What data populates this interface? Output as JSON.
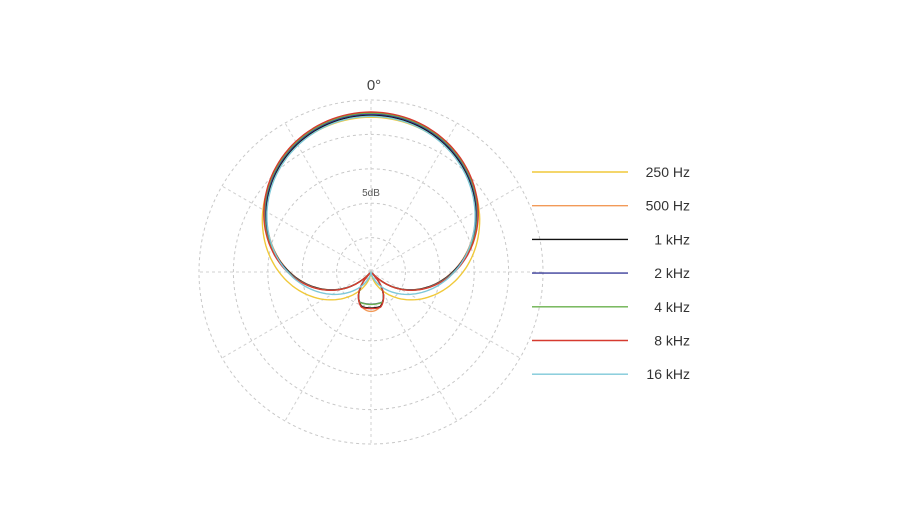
{
  "chart_data": {
    "type": "polar",
    "angle_label": "0°",
    "ring_label": "5dB",
    "grid": true,
    "legend_position": "right",
    "series": [
      {
        "name": "250 Hz",
        "color": "#f0c93a",
        "pattern": "cardioid",
        "rear_lobe": 0.22
      },
      {
        "name": "500 Hz",
        "color": "#f29a58",
        "pattern": "supercardioid",
        "rear_lobe": 0.16
      },
      {
        "name": "1 kHz",
        "color": "#111111",
        "pattern": "supercardioid",
        "rear_lobe": 0.12
      },
      {
        "name": "2 kHz",
        "color": "#3a3d9a",
        "pattern": "supercardioid",
        "rear_lobe": 0.1
      },
      {
        "name": "4 kHz",
        "color": "#6ab04c",
        "pattern": "supercardioid",
        "rear_lobe": 0.1
      },
      {
        "name": "8 kHz",
        "color": "#d63a2f",
        "pattern": "supercardioid",
        "rear_lobe": 0.12
      },
      {
        "name": "16 kHz",
        "color": "#7ec8d8",
        "pattern": "cardioid",
        "rear_lobe": 0.0
      }
    ]
  }
}
